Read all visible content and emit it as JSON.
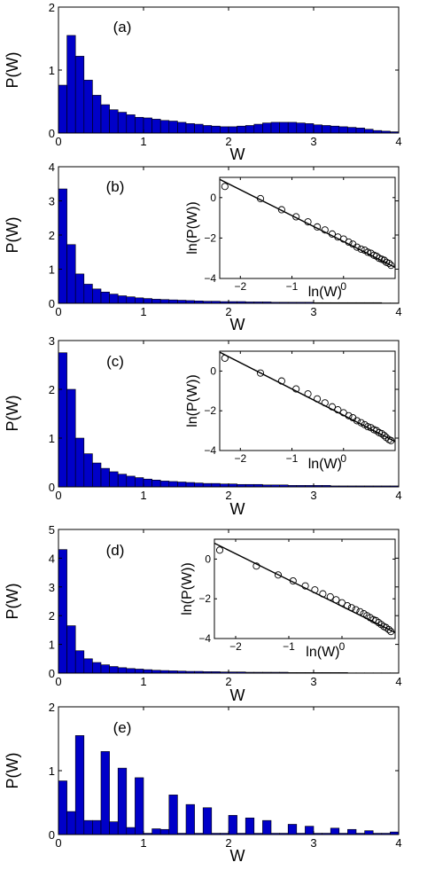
{
  "chart_data": [
    {
      "type": "bar",
      "panel_label": "(a)",
      "xlabel": "W",
      "ylabel": "P(W)",
      "xlim": [
        0,
        4
      ],
      "ylim": [
        0,
        2
      ],
      "xticks": [
        "0",
        "1",
        "2",
        "3",
        "4"
      ],
      "yticks": [
        "0",
        "1",
        "2"
      ],
      "bar_width": 0.1,
      "x": [
        0.0,
        0.1,
        0.2,
        0.3,
        0.4,
        0.5,
        0.6,
        0.7,
        0.8,
        0.9,
        1.0,
        1.1,
        1.2,
        1.3,
        1.4,
        1.5,
        1.6,
        1.7,
        1.8,
        1.9,
        2.0,
        2.1,
        2.2,
        2.3,
        2.4,
        2.5,
        2.6,
        2.7,
        2.8,
        2.9,
        3.0,
        3.1,
        3.2,
        3.3,
        3.4,
        3.5,
        3.6,
        3.7,
        3.8,
        3.9
      ],
      "values": [
        0.76,
        1.55,
        1.22,
        0.84,
        0.6,
        0.45,
        0.37,
        0.33,
        0.29,
        0.25,
        0.24,
        0.22,
        0.2,
        0.19,
        0.17,
        0.15,
        0.14,
        0.12,
        0.11,
        0.1,
        0.1,
        0.11,
        0.12,
        0.14,
        0.16,
        0.17,
        0.17,
        0.17,
        0.16,
        0.15,
        0.13,
        0.12,
        0.11,
        0.1,
        0.09,
        0.08,
        0.06,
        0.04,
        0.03,
        0.02
      ],
      "color": "#0000c8"
    },
    {
      "type": "bar",
      "panel_label": "(b)",
      "xlabel": "W",
      "ylabel": "P(W)",
      "xlim": [
        0,
        4
      ],
      "ylim": [
        0,
        4
      ],
      "xticks": [
        "0",
        "1",
        "2",
        "3",
        "4"
      ],
      "yticks": [
        "0",
        "1",
        "2",
        "3",
        "4"
      ],
      "bar_width": 0.1,
      "x": [
        0.0,
        0.1,
        0.2,
        0.3,
        0.4,
        0.5,
        0.6,
        0.7,
        0.8,
        0.9,
        1.0,
        1.1,
        1.2,
        1.3,
        1.4,
        1.5,
        1.6,
        1.7,
        1.8,
        1.9,
        2.0,
        2.1,
        2.2,
        2.3,
        2.4,
        2.5,
        2.6,
        2.7,
        2.8,
        2.9,
        3.0,
        3.1,
        3.2,
        3.3,
        3.4,
        3.5,
        3.6,
        3.7,
        3.8,
        3.9
      ],
      "values": [
        3.35,
        1.72,
        0.86,
        0.56,
        0.42,
        0.33,
        0.27,
        0.22,
        0.19,
        0.16,
        0.14,
        0.12,
        0.11,
        0.1,
        0.09,
        0.08,
        0.07,
        0.06,
        0.06,
        0.05,
        0.05,
        0.05,
        0.04,
        0.04,
        0.04,
        0.03,
        0.03,
        0.03,
        0.03,
        0.03,
        0.02,
        0.02,
        0.02,
        0.02,
        0.02,
        0.02,
        0.02,
        0.02,
        0.01,
        0.01
      ],
      "color": "#0000c8",
      "inset": {
        "type": "scatter",
        "xlabel": "ln(W)",
        "ylabel": "ln(P(W))",
        "xlim": [
          -2.4,
          1.0
        ],
        "ylim": [
          -4,
          1
        ],
        "xticks": [
          "-2",
          "-1",
          "0"
        ],
        "yticks": [
          "0",
          "-2",
          "-4"
        ],
        "x": [
          -2.3,
          -1.61,
          -1.2,
          -0.92,
          -0.69,
          -0.51,
          -0.36,
          -0.22,
          -0.11,
          0.0,
          0.1,
          0.18,
          0.26,
          0.34,
          0.41,
          0.47,
          0.53,
          0.59,
          0.64,
          0.69,
          0.74,
          0.79,
          0.83,
          0.88,
          0.92
        ],
        "y": [
          0.55,
          -0.05,
          -0.6,
          -0.95,
          -1.2,
          -1.45,
          -1.6,
          -1.8,
          -1.95,
          -2.05,
          -2.2,
          -2.3,
          -2.45,
          -2.55,
          -2.6,
          -2.7,
          -2.75,
          -2.85,
          -2.9,
          -3.0,
          -3.05,
          -3.1,
          -3.2,
          -3.25,
          -3.35
        ],
        "fit_line": {
          "x": [
            -2.4,
            1.0
          ],
          "y": [
            0.9,
            -3.45
          ]
        }
      }
    },
    {
      "type": "bar",
      "panel_label": "(c)",
      "xlabel": "W",
      "ylabel": "P(W)",
      "xlim": [
        0,
        4
      ],
      "ylim": [
        0,
        3
      ],
      "xticks": [
        "0",
        "1",
        "2",
        "3",
        "4"
      ],
      "yticks": [
        "0",
        "1",
        "2",
        "3"
      ],
      "bar_width": 0.1,
      "x": [
        0.0,
        0.1,
        0.2,
        0.3,
        0.4,
        0.5,
        0.6,
        0.7,
        0.8,
        0.9,
        1.0,
        1.1,
        1.2,
        1.3,
        1.4,
        1.5,
        1.6,
        1.7,
        1.8,
        1.9,
        2.0,
        2.1,
        2.2,
        2.3,
        2.4,
        2.5,
        2.6,
        2.7,
        2.8,
        2.9,
        3.0,
        3.1,
        3.2,
        3.3,
        3.4,
        3.5,
        3.6,
        3.7,
        3.8,
        3.9
      ],
      "values": [
        2.75,
        2.0,
        1.0,
        0.68,
        0.49,
        0.38,
        0.31,
        0.26,
        0.22,
        0.19,
        0.16,
        0.14,
        0.12,
        0.11,
        0.1,
        0.09,
        0.08,
        0.07,
        0.07,
        0.06,
        0.06,
        0.05,
        0.05,
        0.05,
        0.04,
        0.04,
        0.04,
        0.03,
        0.03,
        0.03,
        0.03,
        0.03,
        0.02,
        0.02,
        0.02,
        0.02,
        0.02,
        0.02,
        0.02,
        0.02
      ],
      "color": "#0000c8",
      "inset": {
        "type": "scatter",
        "xlabel": "ln(W)",
        "ylabel": "ln(P(W))",
        "xlim": [
          -2.4,
          1.0
        ],
        "ylim": [
          -4,
          1
        ],
        "xticks": [
          "-2",
          "-1",
          "0"
        ],
        "yticks": [
          "0",
          "-2",
          "-4"
        ],
        "x": [
          -2.3,
          -1.61,
          -1.2,
          -0.92,
          -0.69,
          -0.51,
          -0.36,
          -0.22,
          -0.11,
          0.0,
          0.1,
          0.18,
          0.26,
          0.34,
          0.41,
          0.47,
          0.53,
          0.59,
          0.64,
          0.69,
          0.74,
          0.79,
          0.83,
          0.88,
          0.92
        ],
        "y": [
          0.65,
          -0.1,
          -0.5,
          -0.9,
          -1.15,
          -1.4,
          -1.6,
          -1.8,
          -1.95,
          -2.1,
          -2.25,
          -2.35,
          -2.5,
          -2.6,
          -2.7,
          -2.8,
          -2.85,
          -2.95,
          -3.0,
          -3.1,
          -3.15,
          -3.25,
          -3.35,
          -3.45,
          -3.5
        ],
        "fit_line": {
          "x": [
            -2.4,
            1.0
          ],
          "y": [
            0.95,
            -3.55
          ]
        }
      }
    },
    {
      "type": "bar",
      "panel_label": "(d)",
      "xlabel": "W",
      "ylabel": "P(W)",
      "xlim": [
        0,
        4
      ],
      "ylim": [
        0,
        5
      ],
      "xticks": [
        "0",
        "1",
        "2",
        "3",
        "4"
      ],
      "yticks": [
        "0",
        "1",
        "2",
        "3",
        "4",
        "5"
      ],
      "bar_width": 0.1,
      "x": [
        0.0,
        0.1,
        0.2,
        0.3,
        0.4,
        0.5,
        0.6,
        0.7,
        0.8,
        0.9,
        1.0,
        1.1,
        1.2,
        1.3,
        1.4,
        1.5,
        1.6,
        1.7,
        1.8,
        1.9,
        2.0,
        2.1,
        2.2,
        2.3,
        2.4,
        2.5,
        2.6,
        2.7,
        2.8,
        2.9,
        3.0,
        3.1,
        3.2,
        3.3,
        3.4,
        3.5,
        3.6,
        3.7,
        3.8,
        3.9
      ],
      "values": [
        4.3,
        1.65,
        0.78,
        0.5,
        0.37,
        0.29,
        0.23,
        0.19,
        0.16,
        0.14,
        0.12,
        0.1,
        0.09,
        0.08,
        0.07,
        0.06,
        0.06,
        0.05,
        0.05,
        0.04,
        0.04,
        0.04,
        0.03,
        0.03,
        0.03,
        0.03,
        0.03,
        0.02,
        0.02,
        0.02,
        0.02,
        0.02,
        0.02,
        0.02,
        0.01,
        0.01,
        0.01,
        0.01,
        0.01,
        0.01
      ],
      "color": "#0000c8",
      "inset": {
        "type": "scatter",
        "xlabel": "ln(W)",
        "ylabel": "ln(P(W))",
        "xlim": [
          -2.4,
          1.0
        ],
        "ylim": [
          -4,
          1
        ],
        "xticks": [
          "-2",
          "-1",
          "0"
        ],
        "yticks": [
          "0",
          "-2",
          "-4"
        ],
        "x": [
          -2.3,
          -1.61,
          -1.2,
          -0.92,
          -0.69,
          -0.51,
          -0.36,
          -0.22,
          -0.11,
          0.0,
          0.1,
          0.18,
          0.26,
          0.34,
          0.41,
          0.47,
          0.53,
          0.59,
          0.64,
          0.69,
          0.74,
          0.79,
          0.83,
          0.88,
          0.92
        ],
        "y": [
          0.45,
          -0.35,
          -0.8,
          -1.1,
          -1.35,
          -1.55,
          -1.75,
          -1.9,
          -2.05,
          -2.2,
          -2.35,
          -2.45,
          -2.55,
          -2.65,
          -2.75,
          -2.85,
          -2.95,
          -3.05,
          -3.1,
          -3.2,
          -3.3,
          -3.4,
          -3.45,
          -3.55,
          -3.65
        ],
        "fit_line": {
          "x": [
            -2.4,
            1.0
          ],
          "y": [
            0.8,
            -3.7
          ]
        }
      }
    },
    {
      "type": "bar",
      "panel_label": "(e)",
      "xlabel": "W",
      "ylabel": "P(W)",
      "xlim": [
        0,
        4
      ],
      "ylim": [
        0,
        2
      ],
      "xticks": [
        "0",
        "1",
        "2",
        "3",
        "4"
      ],
      "yticks": [
        "0",
        "1",
        "2"
      ],
      "bar_width": 0.1,
      "x": [
        0.0,
        0.1,
        0.2,
        0.3,
        0.4,
        0.5,
        0.6,
        0.7,
        0.8,
        0.9,
        1.0,
        1.1,
        1.2,
        1.3,
        1.4,
        1.5,
        1.6,
        1.7,
        1.8,
        1.9,
        2.0,
        2.1,
        2.2,
        2.3,
        2.4,
        2.5,
        2.6,
        2.7,
        2.8,
        2.9,
        3.0,
        3.1,
        3.2,
        3.3,
        3.4,
        3.5,
        3.6,
        3.7,
        3.8,
        3.9
      ],
      "values": [
        0.84,
        0.36,
        1.55,
        0.22,
        0.22,
        1.3,
        0.2,
        1.04,
        0.11,
        0.89,
        0.02,
        0.09,
        0.08,
        0.62,
        0.02,
        0.47,
        0.02,
        0.42,
        0.02,
        0.02,
        0.3,
        0.02,
        0.26,
        0.02,
        0.22,
        0.02,
        0.02,
        0.16,
        0.02,
        0.13,
        0.02,
        0.02,
        0.1,
        0.02,
        0.08,
        0.02,
        0.06,
        0.02,
        0.02,
        0.04
      ],
      "color": "#0000c8"
    }
  ]
}
